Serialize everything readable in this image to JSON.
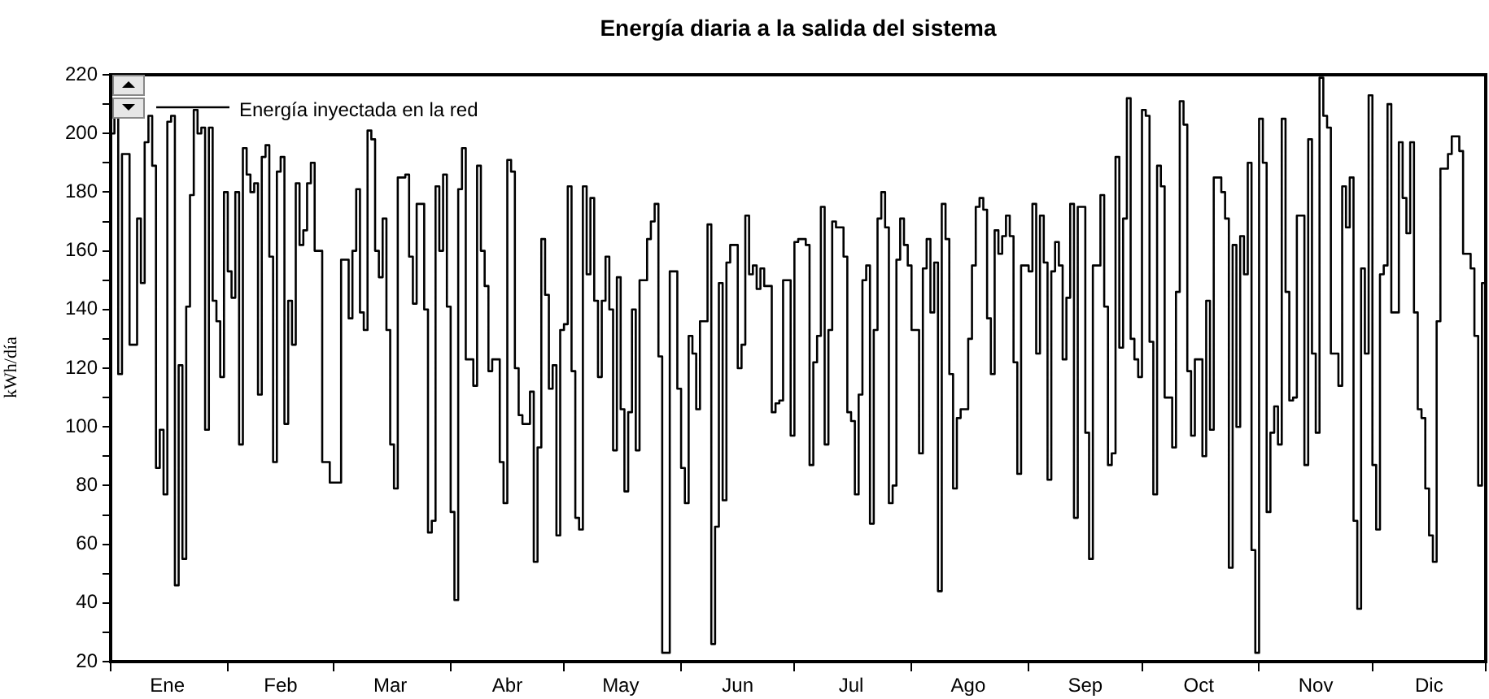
{
  "chart_data": {
    "type": "step",
    "title": "Energía diaria a la salida del sistema",
    "ylabel": "kWh/día",
    "legend": "top left",
    "grid": false,
    "marker": "none",
    "line_style": "solid",
    "xlim": [
      "--01-01",
      "--12-31"
    ],
    "xticks": [
      {
        "value": "--01-01",
        "label": null
      },
      {
        "value": "--01-16",
        "label": "Ene"
      },
      {
        "value": "--02-01",
        "label": null
      },
      {
        "value": "--02-15",
        "label": "Feb"
      },
      {
        "value": "--03-01",
        "label": null
      },
      {
        "value": "--03-16",
        "label": "Mar"
      },
      {
        "value": "--04-01",
        "label": null
      },
      {
        "value": "--04-16",
        "label": "Abr"
      },
      {
        "value": "--05-01",
        "label": null
      },
      {
        "value": "--05-16",
        "label": "May"
      },
      {
        "value": "--06-01",
        "label": null
      },
      {
        "value": "--06-16",
        "label": "Jun"
      },
      {
        "value": "--07-01",
        "label": null
      },
      {
        "value": "--07-16",
        "label": "Jul"
      },
      {
        "value": "--08-01",
        "label": null
      },
      {
        "value": "--08-16",
        "label": "Ago"
      },
      {
        "value": "--09-01",
        "label": null
      },
      {
        "value": "--09-16",
        "label": "Sep"
      },
      {
        "value": "--10-01",
        "label": null
      },
      {
        "value": "--10-16",
        "label": "Oct"
      },
      {
        "value": "--11-01",
        "label": null
      },
      {
        "value": "--11-16",
        "label": "Nov"
      },
      {
        "value": "--12-01",
        "label": null
      },
      {
        "value": "--12-16",
        "label": "Dic"
      },
      {
        "value": "--12-31",
        "label": null
      }
    ],
    "ylim": [
      20,
      220
    ],
    "yticks": [
      20,
      {
        "value": 30,
        "label": null
      },
      40,
      {
        "value": 50,
        "label": null
      },
      60,
      {
        "value": 70,
        "label": null
      },
      80,
      {
        "value": 90,
        "label": null
      },
      100,
      {
        "value": 110,
        "label": null
      },
      120,
      {
        "value": 130,
        "label": null
      },
      140,
      {
        "value": 150,
        "label": null
      },
      160,
      {
        "value": 170,
        "label": null
      },
      180,
      {
        "value": 190,
        "label": null
      },
      200,
      {
        "value": 210,
        "label": null
      },
      220
    ],
    "series": [
      {
        "name": "Energía inyectada en la red",
        "color": "#000000",
        "x": [
          "--01-01",
          "--01-02",
          "--01-03",
          "--01-04",
          "--01-06",
          "--01-08",
          "--01-09",
          "--01-10",
          "--01-11",
          "--01-12",
          "--01-13",
          "--01-14",
          "--01-15",
          "--01-16",
          "--01-17",
          "--01-18",
          "--01-19",
          "--01-20",
          "--01-21",
          "--01-22",
          "--01-23",
          "--01-24",
          "--01-25",
          "--01-26",
          "--01-27",
          "--01-28",
          "--01-29",
          "--01-30",
          "--01-31",
          "--02-01",
          "--02-02",
          "--02-03",
          "--02-04",
          "--02-05",
          "--02-06",
          "--02-07",
          "--02-08",
          "--02-09",
          "--02-10",
          "--02-11",
          "--02-12",
          "--02-13",
          "--02-14",
          "--02-15",
          "--02-16",
          "--02-17",
          "--02-18",
          "--02-19",
          "--02-20",
          "--02-21",
          "--02-22",
          "--02-23",
          "--02-24",
          "--02-26",
          "--02-28",
          "--03-03",
          "--03-05",
          "--03-06",
          "--03-07",
          "--03-08",
          "--03-09",
          "--03-10",
          "--03-11",
          "--03-12",
          "--03-13",
          "--03-14",
          "--03-15",
          "--03-16",
          "--03-17",
          "--03-18",
          "--03-20",
          "--03-21",
          "--03-22",
          "--03-23",
          "--03-25",
          "--03-26",
          "--03-27",
          "--03-28",
          "--03-29",
          "--03-30",
          "--03-31",
          "--04-01",
          "--04-02",
          "--04-03",
          "--04-04",
          "--04-05",
          "--04-07",
          "--04-08",
          "--04-09",
          "--04-10",
          "--04-11",
          "--04-12",
          "--04-14",
          "--04-15",
          "--04-16",
          "--04-17",
          "--04-18",
          "--04-19",
          "--04-20",
          "--04-22",
          "--04-23",
          "--04-24",
          "--04-25",
          "--04-26",
          "--04-27",
          "--04-28",
          "--04-29",
          "--04-30",
          "--05-01",
          "--05-02",
          "--05-03",
          "--05-04",
          "--05-05",
          "--05-06",
          "--05-07",
          "--05-08",
          "--05-09",
          "--05-10",
          "--05-11",
          "--05-12",
          "--05-13",
          "--05-14",
          "--05-15",
          "--05-16",
          "--05-17",
          "--05-18",
          "--05-19",
          "--05-20",
          "--05-21",
          "--05-23",
          "--05-24",
          "--05-25",
          "--05-26",
          "--05-27",
          "--05-29",
          "--05-31",
          "--06-01",
          "--06-02",
          "--06-03",
          "--06-04",
          "--06-05",
          "--06-06",
          "--06-08",
          "--06-09",
          "--06-10",
          "--06-11",
          "--06-12",
          "--06-13",
          "--06-14",
          "--06-16",
          "--06-17",
          "--06-18",
          "--06-19",
          "--06-20",
          "--06-21",
          "--06-22",
          "--06-23",
          "--06-25",
          "--06-26",
          "--06-27",
          "--06-28",
          "--06-30",
          "--07-01",
          "--07-02",
          "--07-04",
          "--07-05",
          "--07-06",
          "--07-07",
          "--07-08",
          "--07-09",
          "--07-10",
          "--07-11",
          "--07-12",
          "--07-14",
          "--07-15",
          "--07-16",
          "--07-17",
          "--07-18",
          "--07-19",
          "--07-20",
          "--07-21",
          "--07-22",
          "--07-23",
          "--07-24",
          "--07-25",
          "--07-26",
          "--07-27",
          "--07-28",
          "--07-29",
          "--07-30",
          "--07-31",
          "--08-01",
          "--08-03",
          "--08-04",
          "--08-05",
          "--08-06",
          "--08-07",
          "--08-08",
          "--08-09",
          "--08-10",
          "--08-11",
          "--08-12",
          "--08-13",
          "--08-14",
          "--08-16",
          "--08-17",
          "--08-18",
          "--08-19",
          "--08-20",
          "--08-21",
          "--08-22",
          "--08-23",
          "--08-24",
          "--08-25",
          "--08-26",
          "--08-27",
          "--08-28",
          "--08-29",
          "--08-30",
          "--09-01",
          "--09-02",
          "--09-03",
          "--09-04",
          "--09-05",
          "--09-06",
          "--09-07",
          "--09-08",
          "--09-09",
          "--09-10",
          "--09-11",
          "--09-12",
          "--09-13",
          "--09-14",
          "--09-16",
          "--09-17",
          "--09-18",
          "--09-20",
          "--09-21",
          "--09-22",
          "--09-23",
          "--09-24",
          "--09-25",
          "--09-26",
          "--09-27",
          "--09-28",
          "--09-29",
          "--09-30",
          "--10-01",
          "--10-02",
          "--10-03",
          "--10-04",
          "--10-05",
          "--10-06",
          "--10-07",
          "--10-09",
          "--10-10",
          "--10-11",
          "--10-12",
          "--10-13",
          "--10-14",
          "--10-15",
          "--10-17",
          "--10-18",
          "--10-19",
          "--10-20",
          "--10-22",
          "--10-23",
          "--10-24",
          "--10-25",
          "--10-26",
          "--10-27",
          "--10-28",
          "--10-29",
          "--10-30",
          "--10-31",
          "--11-01",
          "--11-02",
          "--11-03",
          "--11-04",
          "--11-05",
          "--11-06",
          "--11-07",
          "--11-08",
          "--11-09",
          "--11-10",
          "--11-11",
          "--11-13",
          "--11-14",
          "--11-15",
          "--11-16",
          "--11-17",
          "--11-18",
          "--11-19",
          "--11-20",
          "--11-22",
          "--11-23",
          "--11-24",
          "--11-25",
          "--11-26",
          "--11-27",
          "--11-28",
          "--11-29",
          "--11-30",
          "--12-01",
          "--12-02",
          "--12-03",
          "--12-04",
          "--12-05",
          "--12-06",
          "--12-08",
          "--12-09",
          "--12-10",
          "--12-11",
          "--12-12",
          "--12-13",
          "--12-14",
          "--12-15",
          "--12-16",
          "--12-17",
          "--12-18",
          "--12-19",
          "--12-21",
          "--12-22",
          "--12-24",
          "--12-25",
          "--12-27",
          "--12-28",
          "--12-29",
          "--12-30",
          "--12-31"
        ],
        "values": [
          128,
          200,
          206,
          118,
          193,
          128,
          171,
          149,
          197,
          206,
          189,
          86,
          99,
          77,
          204,
          206,
          46,
          121,
          55,
          141,
          179,
          208,
          200,
          202,
          99,
          202,
          143,
          136,
          117,
          180,
          153,
          144,
          180,
          94,
          195,
          186,
          180,
          183,
          111,
          192,
          196,
          158,
          88,
          187,
          192,
          101,
          143,
          128,
          183,
          162,
          167,
          183,
          190,
          160,
          88,
          81,
          157,
          137,
          160,
          181,
          139,
          133,
          201,
          198,
          160,
          151,
          171,
          133,
          94,
          79,
          185,
          186,
          158,
          142,
          176,
          140,
          64,
          68,
          182,
          160,
          186,
          141,
          71,
          41,
          181,
          195,
          123,
          114,
          189,
          160,
          148,
          119,
          123,
          88,
          74,
          191,
          187,
          120,
          104,
          101,
          112,
          54,
          93,
          164,
          145,
          113,
          121,
          63,
          133,
          135,
          182,
          119,
          69,
          65,
          182,
          152,
          178,
          143,
          117,
          143,
          158,
          140,
          92,
          151,
          106,
          78,
          105,
          140,
          92,
          150,
          164,
          170,
          176,
          124,
          23,
          153,
          113,
          86,
          74,
          131,
          125,
          106,
          136,
          169,
          26,
          66,
          149,
          75,
          156,
          162,
          120,
          128,
          172,
          152,
          155,
          147,
          154,
          148,
          105,
          108,
          109,
          150,
          97,
          163,
          164,
          162,
          87,
          122,
          131,
          175,
          94,
          133,
          170,
          168,
          158,
          105,
          102,
          77,
          111,
          150,
          155,
          67,
          133,
          171,
          180,
          168,
          74,
          80,
          157,
          171,
          162,
          155,
          133,
          91,
          154,
          164,
          139,
          156,
          44,
          176,
          164,
          118,
          79,
          103,
          106,
          130,
          155,
          175,
          178,
          174,
          137,
          118,
          167,
          159,
          165,
          172,
          165,
          122,
          84,
          155,
          153,
          176,
          125,
          172,
          156,
          82,
          153,
          163,
          155,
          123,
          144,
          176,
          69,
          175,
          98,
          55,
          155,
          179,
          141,
          87,
          91,
          192,
          127,
          171,
          212,
          130,
          123,
          117,
          208,
          206,
          129,
          77,
          189,
          182,
          110,
          93,
          146,
          211,
          203,
          119,
          97,
          123,
          90,
          143,
          99,
          185,
          180,
          171,
          52,
          162,
          100,
          165,
          152,
          190,
          58,
          23,
          205,
          190,
          71,
          98,
          107,
          94,
          205,
          146,
          109,
          110,
          172,
          87,
          198,
          125,
          98,
          219,
          206,
          202,
          125,
          114,
          182,
          168,
          185,
          68,
          38,
          154,
          125,
          213,
          87,
          65,
          152,
          155,
          210,
          139,
          197,
          178,
          166,
          197,
          139,
          106,
          103,
          79,
          63,
          54,
          136,
          188,
          193,
          199,
          194,
          159,
          154,
          131,
          80,
          149
        ]
      }
    ]
  }
}
